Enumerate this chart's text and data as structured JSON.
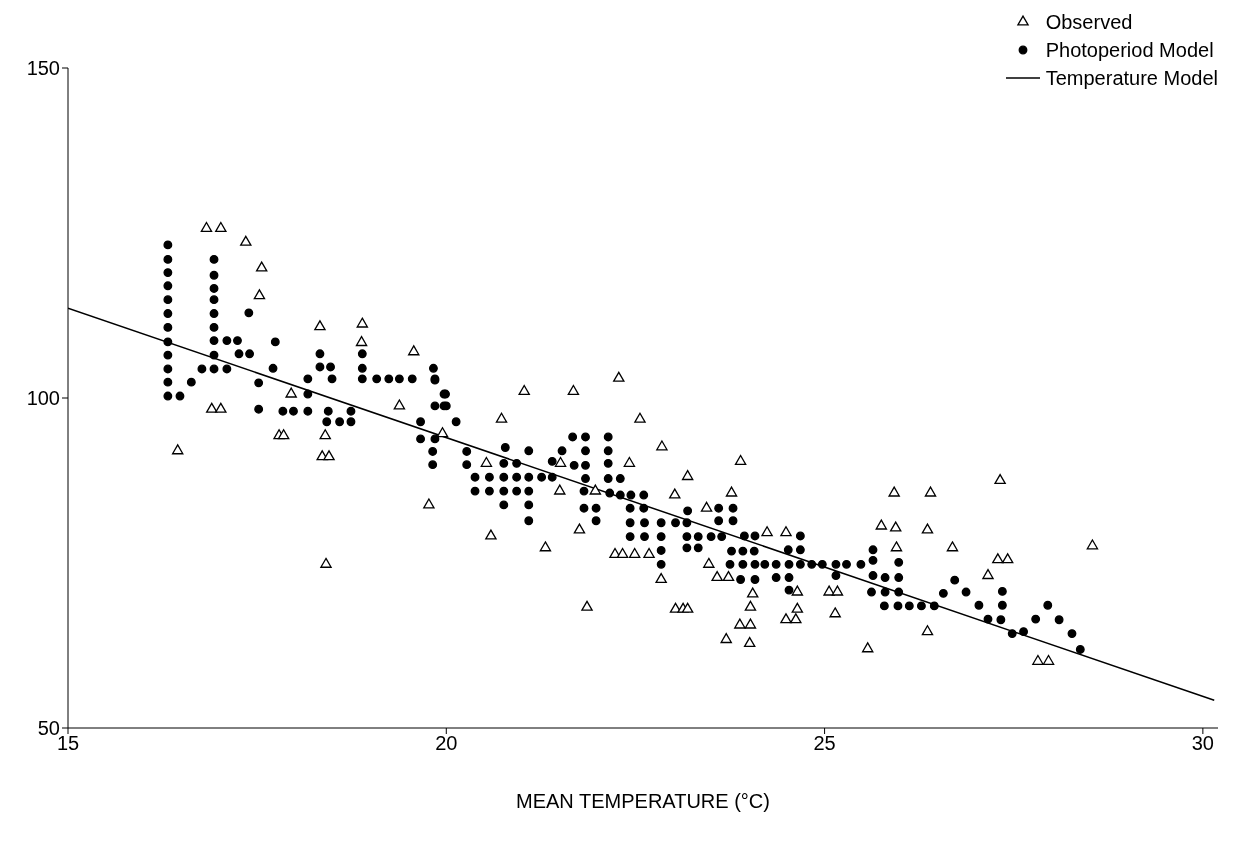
{
  "chart_data": {
    "type": "scatter",
    "xlabel": "MEAN TEMPERATURE (°C)",
    "xlim": [
      15,
      30.2
    ],
    "xticks": [
      15,
      20,
      25,
      30
    ],
    "ylim": [
      50,
      150
    ],
    "yticks": [
      50,
      100,
      150
    ],
    "grid": false,
    "legend": "top right",
    "series": [
      {
        "name": "Observed",
        "marker": "triangle",
        "color": "#000000",
        "x": [
          16.83,
          17.02,
          17.35,
          17.56,
          17.53,
          18.33,
          18.89,
          18.88,
          19.57,
          17.95,
          16.9,
          17.02,
          16.45,
          17.79,
          17.85,
          18.4,
          18.36,
          18.45,
          18.41,
          19.38,
          19.95,
          19.77,
          22.28,
          21.03,
          21.68,
          20.73,
          22.56,
          22.85,
          22.42,
          23.89,
          23.19,
          23.02,
          23.77,
          20.53,
          21.51,
          21.5,
          21.97,
          23.44,
          24.24,
          24.49,
          20.59,
          21.76,
          21.31,
          22.23,
          22.33,
          22.49,
          22.68,
          22.84,
          23.47,
          23.58,
          23.73,
          24.05,
          24.64,
          25.06,
          25.17,
          25.14,
          21.86,
          23.03,
          23.13,
          23.19,
          24.02,
          24.02,
          24.01,
          23.88,
          23.7,
          24.49,
          24.62,
          24.64,
          27.32,
          25.92,
          26.4,
          25.75,
          25.94,
          26.36,
          25.95,
          26.69,
          27.29,
          27.42,
          27.16,
          28.54,
          26.36,
          25.57,
          27.82,
          27.96
        ],
        "values": [
          125.7,
          125.7,
          123.6,
          119.7,
          115.5,
          110.8,
          111.2,
          108.4,
          107,
          100.6,
          98.3,
          98.3,
          92,
          94.3,
          94.3,
          94.3,
          91.1,
          91.1,
          74.8,
          98.8,
          94.6,
          83.8,
          103,
          101,
          101,
          96.8,
          96.8,
          92.6,
          90.1,
          90.4,
          88.1,
          85.3,
          85.6,
          90.1,
          90.1,
          85.9,
          85.9,
          83.3,
          79.6,
          79.6,
          79.1,
          80,
          77.3,
          76.3,
          76.3,
          76.3,
          76.3,
          72.5,
          74.8,
          72.8,
          72.8,
          70.3,
          70.6,
          70.6,
          70.6,
          67.3,
          68.3,
          68,
          68,
          68,
          68.3,
          65.6,
          62.8,
          65.6,
          63.4,
          66.4,
          66.4,
          68,
          87.5,
          85.6,
          85.6,
          80.6,
          80.3,
          80,
          77.3,
          77.3,
          75.5,
          75.5,
          73.1,
          77.6,
          64.6,
          62,
          60.1,
          60.1
        ]
      },
      {
        "name": "Photoperiod Model",
        "marker": "circle",
        "color": "#000000",
        "x": [
          16.32,
          16.32,
          16.32,
          16.32,
          16.32,
          16.32,
          16.32,
          16.32,
          16.32,
          16.32,
          16.32,
          16.32,
          16.48,
          16.63,
          16.93,
          16.93,
          16.93,
          16.93,
          16.93,
          16.93,
          16.93,
          16.93,
          16.93,
          16.77,
          17.1,
          17.24,
          17.1,
          17.26,
          17.4,
          17.39,
          17.71,
          17.74,
          18.33,
          18.33,
          18.47,
          18.89,
          18.89,
          19.83,
          18.17,
          18.49,
          18.89,
          19.08,
          19.24,
          19.38,
          19.55,
          19.85,
          17.52,
          18.17,
          17.52,
          17.84,
          17.98,
          18.17,
          18.44,
          18.74,
          18.42,
          18.59,
          18.74,
          19.85,
          19.97,
          19.85,
          19.97,
          19.66,
          19.85,
          19.82,
          19.82,
          19.66,
          19.99,
          20,
          20.13,
          20.27,
          20.27,
          20.38,
          20.57,
          20.76,
          20.93,
          21.09,
          21.26,
          21.4,
          20.38,
          20.57,
          20.76,
          20.93,
          21.09,
          20.76,
          21.09,
          21.09,
          20.76,
          20.93,
          21.09,
          20.78,
          21.4,
          21.53,
          21.67,
          21.84,
          21.84,
          21.69,
          21.84,
          21.84,
          21.82,
          21.82,
          21.98,
          21.98,
          22.14,
          22.14,
          22.14,
          22.14,
          22.3,
          22.16,
          22.3,
          22.44,
          22.61,
          22.43,
          22.61,
          22.43,
          22.62,
          22.84,
          23.03,
          23.18,
          22.43,
          22.62,
          22.84,
          23.18,
          23.33,
          23.5,
          23.64,
          23.18,
          23.33,
          22.84,
          22.84,
          23.19,
          23.6,
          23.79,
          23.6,
          23.79,
          23.77,
          23.92,
          24.07,
          23.75,
          23.92,
          24.08,
          24.21,
          24.36,
          24.53,
          24.68,
          24.83,
          24.97,
          23.89,
          24.08,
          24.36,
          24.53,
          23.94,
          24.08,
          24.68,
          24.68,
          24.52,
          24.53,
          25.15,
          25.15,
          25.29,
          25.48,
          25.64,
          25.64,
          25.64,
          25.8,
          25.98,
          25.62,
          25.8,
          25.98,
          25.98,
          25.79,
          25.97,
          26.12,
          26.28,
          26.45,
          26.57,
          26.87,
          26.72,
          27.04,
          27.35,
          27.35,
          27.16,
          27.33,
          27.48,
          27.63,
          27.79,
          27.95,
          28.1,
          28.27,
          28.38
        ],
        "values": [
          123.2,
          121,
          119,
          117,
          114.9,
          112.8,
          110.7,
          108.5,
          106.5,
          104.4,
          102.4,
          100.3,
          100.3,
          102.4,
          121,
          118.6,
          116.6,
          114.9,
          112.8,
          110.7,
          108.7,
          106.5,
          104.4,
          104.4,
          108.7,
          108.7,
          104.4,
          106.7,
          106.7,
          112.9,
          104.5,
          108.5,
          106.7,
          104.7,
          104.7,
          106.7,
          104.5,
          104.5,
          102.9,
          102.9,
          102.9,
          102.9,
          102.9,
          102.9,
          102.9,
          102.9,
          102.3,
          100.6,
          98.3,
          98,
          98,
          98,
          98,
          98,
          96.4,
          96.4,
          96.4,
          102.7,
          100.6,
          98.8,
          98.8,
          93.8,
          93.8,
          91.9,
          89.9,
          96.4,
          100.6,
          98.8,
          96.4,
          91.9,
          89.9,
          88,
          88,
          88,
          88,
          88,
          88,
          88,
          85.9,
          85.9,
          85.9,
          85.9,
          85.9,
          83.8,
          83.8,
          81.4,
          90.1,
          90.1,
          92,
          92.5,
          90.4,
          92,
          94.1,
          94.1,
          92,
          89.8,
          89.8,
          87.8,
          85.9,
          83.3,
          83.3,
          81.4,
          94.1,
          92,
          90.1,
          87.8,
          87.8,
          85.6,
          85.3,
          85.3,
          85.3,
          83.3,
          83.3,
          81.1,
          81.1,
          81.1,
          81.1,
          81.1,
          79,
          79,
          79,
          79,
          79,
          79,
          79,
          77.3,
          77.3,
          76.9,
          74.8,
          82.9,
          83.3,
          83.3,
          81.4,
          81.4,
          76.8,
          76.8,
          76.8,
          74.8,
          74.8,
          74.8,
          74.8,
          74.8,
          74.8,
          74.8,
          74.8,
          74.8,
          72.5,
          72.5,
          72.8,
          72.8,
          79.1,
          79.1,
          79.1,
          77,
          77,
          70.9,
          73.1,
          74.8,
          74.8,
          74.8,
          75.4,
          77,
          73.1,
          72.8,
          72.8,
          70.6,
          70.6,
          70.6,
          75.1,
          68.5,
          68.5,
          68.5,
          68.5,
          68.5,
          70.4,
          70.6,
          72.4,
          68.6,
          68.6,
          70.7,
          66.5,
          66.4,
          64.3,
          64.6,
          66.5,
          68.6,
          66.4,
          64.3,
          61.9
        ]
      },
      {
        "name": "Temperature Model",
        "type": "line",
        "marker": "none",
        "line_style": "solid",
        "color": "#000000",
        "x": [
          15,
          30.15
        ],
        "values": [
          113.6,
          54.2
        ]
      }
    ]
  }
}
